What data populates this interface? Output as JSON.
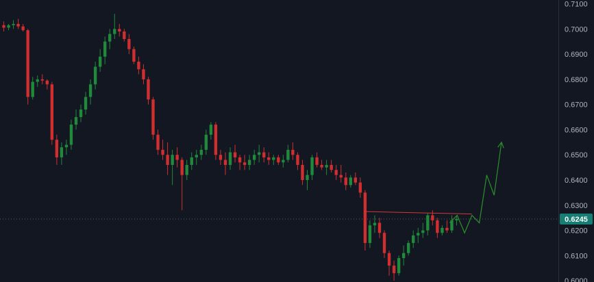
{
  "chart_data": {
    "type": "candlestick",
    "title": "",
    "xlabel": "",
    "ylabel": "",
    "ylim": [
      0.5995,
      0.7115
    ],
    "y_ticks": [
      "0.7100",
      "0.7000",
      "0.6900",
      "0.6800",
      "0.6700",
      "0.6600",
      "0.6500",
      "0.6400",
      "0.6300",
      "0.6200",
      "0.6100",
      "0.6000"
    ],
    "current_price": "0.6245",
    "colors": {
      "up": "#1f8a3a",
      "down": "#d12f2f",
      "background": "#131722",
      "price_tag": "#177e73",
      "resistance": "#d13a3a",
      "projection": "#2a8a2a"
    },
    "candles": [
      [
        0.7015,
        0.703,
        0.699,
        0.7005
      ],
      [
        0.7005,
        0.702,
        0.6995,
        0.7015
      ],
      [
        0.7015,
        0.7035,
        0.7,
        0.702
      ],
      [
        0.702,
        0.704,
        0.7,
        0.701
      ],
      [
        0.701,
        0.702,
        0.699,
        0.6995
      ],
      [
        0.6995,
        0.7,
        0.67,
        0.673
      ],
      [
        0.673,
        0.681,
        0.672,
        0.679
      ],
      [
        0.679,
        0.6815,
        0.677,
        0.68
      ],
      [
        0.68,
        0.682,
        0.678,
        0.6795
      ],
      [
        0.6795,
        0.68,
        0.676,
        0.678
      ],
      [
        0.678,
        0.679,
        0.654,
        0.656
      ],
      [
        0.656,
        0.658,
        0.646,
        0.649
      ],
      [
        0.649,
        0.655,
        0.646,
        0.653
      ],
      [
        0.653,
        0.656,
        0.65,
        0.654
      ],
      [
        0.654,
        0.664,
        0.652,
        0.662
      ],
      [
        0.662,
        0.668,
        0.66,
        0.665
      ],
      [
        0.665,
        0.67,
        0.663,
        0.668
      ],
      [
        0.668,
        0.675,
        0.666,
        0.673
      ],
      [
        0.673,
        0.68,
        0.67,
        0.678
      ],
      [
        0.678,
        0.687,
        0.676,
        0.685
      ],
      [
        0.685,
        0.692,
        0.683,
        0.689
      ],
      [
        0.689,
        0.697,
        0.686,
        0.695
      ],
      [
        0.695,
        0.7,
        0.692,
        0.698
      ],
      [
        0.698,
        0.706,
        0.696,
        0.7
      ],
      [
        0.7,
        0.702,
        0.697,
        0.699
      ],
      [
        0.699,
        0.7,
        0.695,
        0.696
      ],
      [
        0.696,
        0.698,
        0.69,
        0.692
      ],
      [
        0.692,
        0.693,
        0.686,
        0.687
      ],
      [
        0.687,
        0.689,
        0.682,
        0.684
      ],
      [
        0.684,
        0.686,
        0.678,
        0.68
      ],
      [
        0.68,
        0.681,
        0.67,
        0.672
      ],
      [
        0.672,
        0.673,
        0.656,
        0.658
      ],
      [
        0.658,
        0.66,
        0.65,
        0.652
      ],
      [
        0.652,
        0.656,
        0.648,
        0.65
      ],
      [
        0.65,
        0.655,
        0.642,
        0.646
      ],
      [
        0.646,
        0.652,
        0.638,
        0.65
      ],
      [
        0.65,
        0.653,
        0.645,
        0.648
      ],
      [
        0.648,
        0.649,
        0.628,
        0.642
      ],
      [
        0.642,
        0.648,
        0.64,
        0.646
      ],
      [
        0.646,
        0.651,
        0.644,
        0.649
      ],
      [
        0.649,
        0.652,
        0.646,
        0.65
      ],
      [
        0.65,
        0.654,
        0.648,
        0.652
      ],
      [
        0.652,
        0.66,
        0.65,
        0.658
      ],
      [
        0.658,
        0.663,
        0.656,
        0.662
      ],
      [
        0.662,
        0.663,
        0.648,
        0.65
      ],
      [
        0.65,
        0.652,
        0.646,
        0.648
      ],
      [
        0.648,
        0.651,
        0.642,
        0.646
      ],
      [
        0.646,
        0.653,
        0.644,
        0.651
      ],
      [
        0.651,
        0.654,
        0.647,
        0.649
      ],
      [
        0.649,
        0.65,
        0.644,
        0.647
      ],
      [
        0.647,
        0.65,
        0.644,
        0.646
      ],
      [
        0.646,
        0.65,
        0.644,
        0.648
      ],
      [
        0.648,
        0.652,
        0.646,
        0.65
      ],
      [
        0.65,
        0.654,
        0.647,
        0.651
      ],
      [
        0.651,
        0.653,
        0.647,
        0.649
      ],
      [
        0.649,
        0.651,
        0.646,
        0.648
      ],
      [
        0.648,
        0.65,
        0.646,
        0.649
      ],
      [
        0.649,
        0.65,
        0.646,
        0.647
      ],
      [
        0.647,
        0.65,
        0.645,
        0.648
      ],
      [
        0.648,
        0.654,
        0.647,
        0.652
      ],
      [
        0.652,
        0.655,
        0.648,
        0.65
      ],
      [
        0.65,
        0.651,
        0.644,
        0.646
      ],
      [
        0.646,
        0.648,
        0.638,
        0.64
      ],
      [
        0.64,
        0.644,
        0.636,
        0.642
      ],
      [
        0.642,
        0.65,
        0.64,
        0.649
      ],
      [
        0.649,
        0.651,
        0.645,
        0.646
      ],
      [
        0.646,
        0.648,
        0.644,
        0.645
      ],
      [
        0.645,
        0.648,
        0.642,
        0.646
      ],
      [
        0.646,
        0.648,
        0.643,
        0.644
      ],
      [
        0.644,
        0.646,
        0.64,
        0.642
      ],
      [
        0.642,
        0.646,
        0.639,
        0.641
      ],
      [
        0.641,
        0.643,
        0.636,
        0.638
      ],
      [
        0.638,
        0.642,
        0.637,
        0.641
      ],
      [
        0.641,
        0.643,
        0.638,
        0.639
      ],
      [
        0.639,
        0.641,
        0.633,
        0.635
      ],
      [
        0.635,
        0.636,
        0.612,
        0.615
      ],
      [
        0.615,
        0.624,
        0.613,
        0.622
      ],
      [
        0.622,
        0.626,
        0.619,
        0.623
      ],
      [
        0.623,
        0.625,
        0.617,
        0.619
      ],
      [
        0.619,
        0.62,
        0.609,
        0.611
      ],
      [
        0.611,
        0.612,
        0.602,
        0.606
      ],
      [
        0.606,
        0.608,
        0.6,
        0.603
      ],
      [
        0.603,
        0.61,
        0.602,
        0.609
      ],
      [
        0.609,
        0.614,
        0.606,
        0.611
      ],
      [
        0.611,
        0.616,
        0.61,
        0.615
      ],
      [
        0.615,
        0.62,
        0.613,
        0.618
      ],
      [
        0.618,
        0.621,
        0.615,
        0.619
      ],
      [
        0.619,
        0.623,
        0.617,
        0.62
      ],
      [
        0.62,
        0.627,
        0.618,
        0.626
      ],
      [
        0.626,
        0.628,
        0.622,
        0.624
      ],
      [
        0.624,
        0.625,
        0.617,
        0.619
      ],
      [
        0.619,
        0.622,
        0.618,
        0.621
      ],
      [
        0.621,
        0.624,
        0.619,
        0.62
      ],
      [
        0.62,
        0.626,
        0.619,
        0.624
      ],
      [
        0.624,
        0.626,
        0.622,
        0.6245
      ]
    ],
    "resistance_line": [
      0.6275,
      0.6265
    ],
    "projection_path": [
      0.623,
      0.626,
      0.619,
      0.626,
      0.623,
      0.642,
      0.634,
      0.655
    ]
  }
}
